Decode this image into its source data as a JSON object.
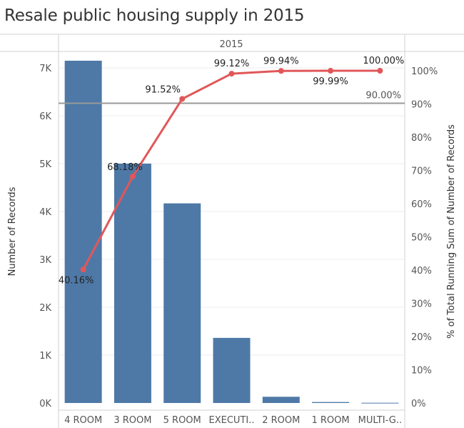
{
  "title": "Resale public housing supply in 2015",
  "chart_data": {
    "type": "bar+line (pareto)",
    "header": "2015",
    "categories": [
      "4 ROOM",
      "3 ROOM",
      "5 ROOM",
      "EXECUTI..",
      "2 ROOM",
      "1 ROOM",
      "MULTI-G.."
    ],
    "bar_values": [
      7150,
      5000,
      4170,
      1360,
      130,
      20,
      5
    ],
    "line_values_pct": [
      40.16,
      68.18,
      91.52,
      99.12,
      99.94,
      99.99,
      100.0
    ],
    "line_labels": [
      "40.16%",
      "68.18%",
      "91.52%",
      "99.12%",
      "99.94%",
      "99.99%",
      "100.00%"
    ],
    "reference_line": {
      "value_pct": 90,
      "label": "90.00%"
    },
    "ylabel_left": "Number of Records",
    "ylabel_right": "% of Total Running Sum of Number of Records",
    "ylim_left": [
      0,
      7400
    ],
    "yticks_left": [
      {
        "value": 0,
        "label": "0K"
      },
      {
        "value": 1000,
        "label": "1K"
      },
      {
        "value": 2000,
        "label": "2K"
      },
      {
        "value": 3000,
        "label": "3K"
      },
      {
        "value": 4000,
        "label": "4K"
      },
      {
        "value": 5000,
        "label": "5K"
      },
      {
        "value": 6000,
        "label": "6K"
      },
      {
        "value": 7000,
        "label": "7K"
      }
    ],
    "yticks_right": [
      "0%",
      "10%",
      "20%",
      "30%",
      "40%",
      "50%",
      "60%",
      "70%",
      "80%",
      "90%",
      "100%"
    ],
    "colors": {
      "bar": "#4e79a7",
      "line": "#e15759",
      "reference": "#999999",
      "grid": "#eeeeee",
      "text": "#555555"
    }
  }
}
